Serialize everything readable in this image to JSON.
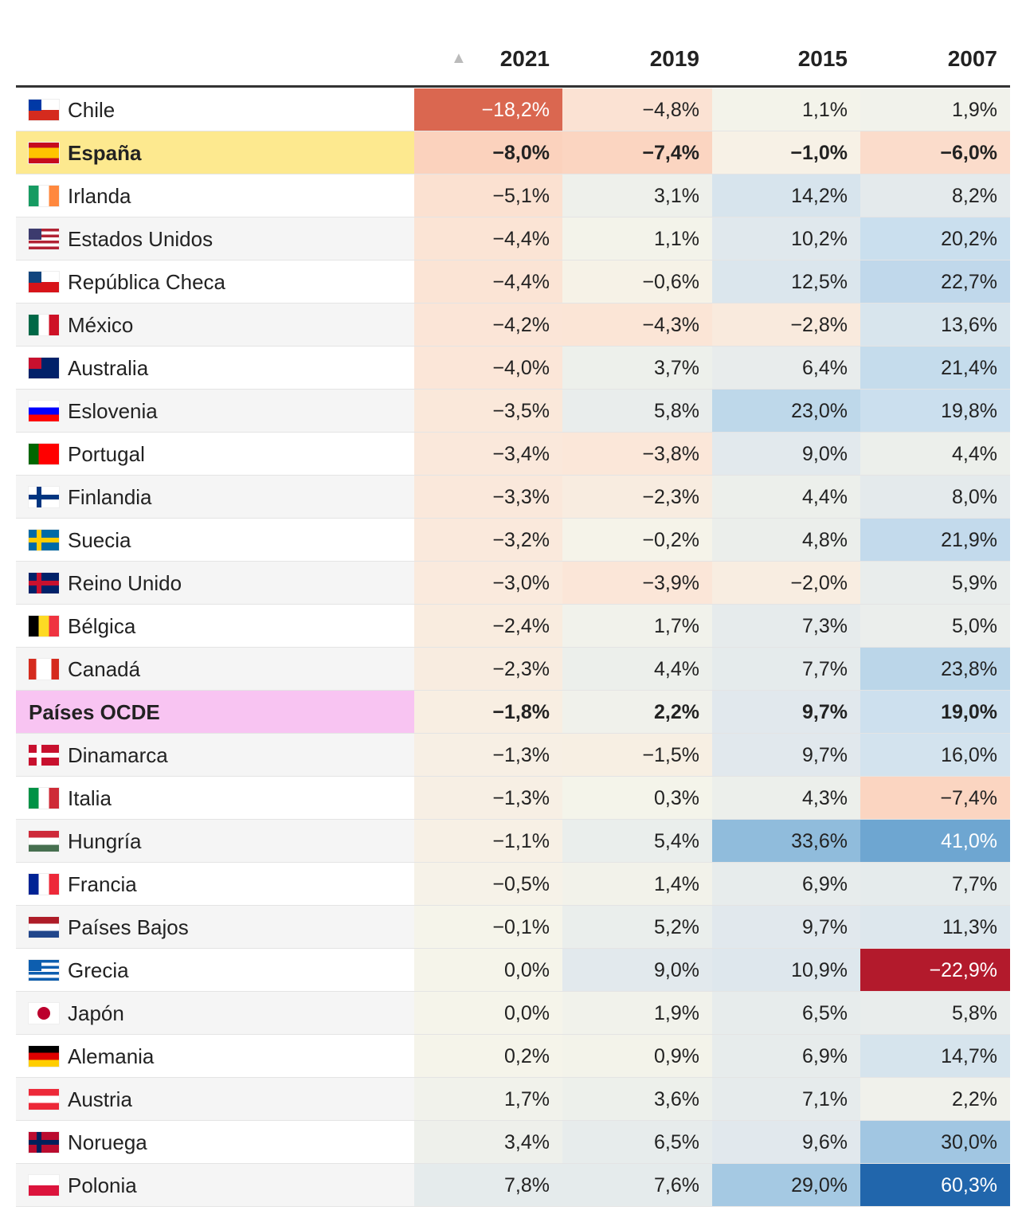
{
  "header": {
    "years": [
      "2021",
      "2019",
      "2015",
      "2007"
    ]
  },
  "table": {
    "rows": [
      {
        "country": "Chile",
        "values": [
          "−18,2%",
          "−4,8%",
          "1,1%",
          "1,9%"
        ]
      },
      {
        "country": "España",
        "values": [
          "−8,0%",
          "−7,4%",
          "−1,0%",
          "−6,0%"
        ],
        "highlight": "#fde98f",
        "bold": true
      },
      {
        "country": "Irlanda",
        "values": [
          "−5,1%",
          "3,1%",
          "14,2%",
          "8,2%"
        ]
      },
      {
        "country": "Estados Unidos",
        "values": [
          "−4,4%",
          "1,1%",
          "10,2%",
          "20,2%"
        ]
      },
      {
        "country": "República Checa",
        "values": [
          "−4,4%",
          "−0,6%",
          "12,5%",
          "22,7%"
        ]
      },
      {
        "country": "México",
        "values": [
          "−4,2%",
          "−4,3%",
          "−2,8%",
          "13,6%"
        ]
      },
      {
        "country": "Australia",
        "values": [
          "−4,0%",
          "3,7%",
          "6,4%",
          "21,4%"
        ]
      },
      {
        "country": "Eslovenia",
        "values": [
          "−3,5%",
          "5,8%",
          "23,0%",
          "19,8%"
        ]
      },
      {
        "country": "Portugal",
        "values": [
          "−3,4%",
          "−3,8%",
          "9,0%",
          "4,4%"
        ]
      },
      {
        "country": "Finlandia",
        "values": [
          "−3,3%",
          "−2,3%",
          "4,4%",
          "8,0%"
        ]
      },
      {
        "country": "Suecia",
        "values": [
          "−3,2%",
          "−0,2%",
          "4,8%",
          "21,9%"
        ]
      },
      {
        "country": "Reino Unido",
        "values": [
          "−3,0%",
          "−3,9%",
          "−2,0%",
          "5,9%"
        ]
      },
      {
        "country": "Bélgica",
        "values": [
          "−2,4%",
          "1,7%",
          "7,3%",
          "5,0%"
        ]
      },
      {
        "country": "Canadá",
        "values": [
          "−2,3%",
          "4,4%",
          "7,7%",
          "23,8%"
        ]
      },
      {
        "country": "Países OCDE",
        "values": [
          "−1,8%",
          "2,2%",
          "9,7%",
          "19,0%"
        ],
        "highlight": "#f8c4f2",
        "bold": true
      },
      {
        "country": "Dinamarca",
        "values": [
          "−1,3%",
          "−1,5%",
          "9,7%",
          "16,0%"
        ]
      },
      {
        "country": "Italia",
        "values": [
          "−1,3%",
          "0,3%",
          "4,3%",
          "−7,4%"
        ]
      },
      {
        "country": "Hungría",
        "values": [
          "−1,1%",
          "5,4%",
          "33,6%",
          "41,0%"
        ]
      },
      {
        "country": "Francia",
        "values": [
          "−0,5%",
          "1,4%",
          "6,9%",
          "7,7%"
        ]
      },
      {
        "country": "Países Bajos",
        "values": [
          "−0,1%",
          "5,2%",
          "9,7%",
          "11,3%"
        ]
      },
      {
        "country": "Grecia",
        "values": [
          "0,0%",
          "9,0%",
          "10,9%",
          "−22,9%"
        ]
      },
      {
        "country": "Japón",
        "values": [
          "0,0%",
          "1,9%",
          "6,5%",
          "5,8%"
        ]
      },
      {
        "country": "Alemania",
        "values": [
          "0,2%",
          "0,9%",
          "6,9%",
          "14,7%"
        ]
      },
      {
        "country": "Austria",
        "values": [
          "1,7%",
          "3,6%",
          "7,1%",
          "2,2%"
        ]
      },
      {
        "country": "Noruega",
        "values": [
          "3,4%",
          "6,5%",
          "9,6%",
          "30,0%"
        ]
      },
      {
        "country": "Polonia",
        "values": [
          "7,8%",
          "7,6%",
          "29,0%",
          "60,3%"
        ]
      }
    ]
  }
}
